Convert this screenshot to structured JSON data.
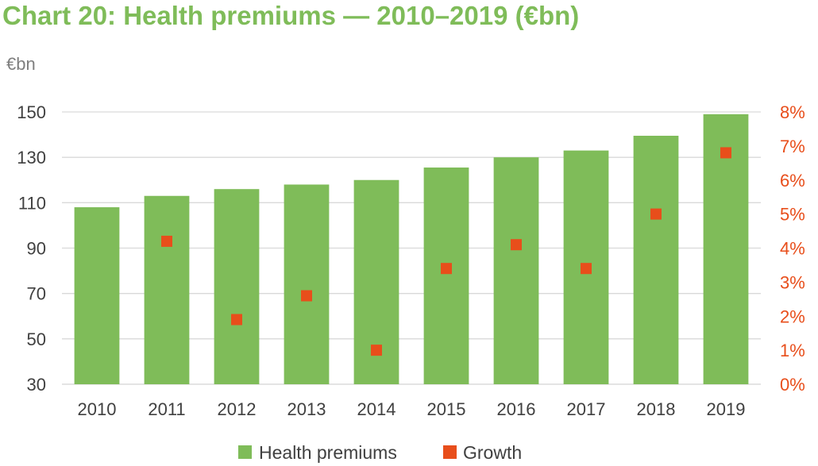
{
  "chart_data": {
    "type": "bar",
    "title": "Chart 20: Health premiums — 2010–2019 (€bn)",
    "ylabel": "€bn",
    "categories": [
      "2010",
      "2011",
      "2012",
      "2013",
      "2014",
      "2015",
      "2016",
      "2017",
      "2018",
      "2019"
    ],
    "series": [
      {
        "name": "Health premiums",
        "type": "bar",
        "axis": "left",
        "color": "#7fbc59",
        "values": [
          108,
          113,
          116,
          118,
          120,
          125.5,
          130,
          133,
          139.5,
          149
        ]
      },
      {
        "name": "Growth",
        "type": "scatter",
        "axis": "right",
        "color": "#e84e1b",
        "values": [
          null,
          4.2,
          1.9,
          2.6,
          1.0,
          3.4,
          4.1,
          3.4,
          5.0,
          6.8
        ]
      }
    ],
    "ylim": [
      30,
      150
    ],
    "yticks": [
      "30",
      "50",
      "70",
      "90",
      "110",
      "130",
      "150"
    ],
    "y2lim": [
      0,
      8
    ],
    "y2ticks": [
      "0%",
      "1%",
      "2%",
      "3%",
      "4%",
      "5%",
      "6%",
      "7%",
      "8%"
    ],
    "grid": true,
    "legend": "bottom",
    "colors": {
      "title": "#7fbc59",
      "axis_text": "#404040",
      "right_axis_text": "#e84e1b",
      "grid": "#d9d9d9",
      "unit_label": "#7f7f7f"
    }
  }
}
